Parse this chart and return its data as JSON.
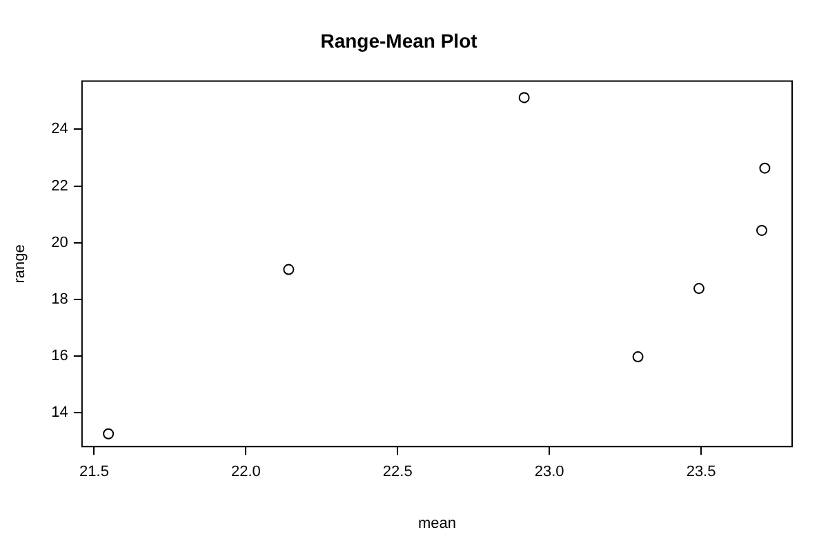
{
  "chart_data": {
    "type": "scatter",
    "title": "Range-Mean Plot",
    "xlabel": "mean",
    "ylabel": "range",
    "x": [
      21.547,
      22.141,
      22.917,
      23.292,
      23.493,
      23.7,
      23.71
    ],
    "series": [
      {
        "color": "#000000",
        "values": [
          13.25,
          19.05,
          25.12,
          15.97,
          18.38,
          20.43,
          22.63
        ]
      }
    ],
    "xlim": [
      21.46,
      23.8
    ],
    "xticks": [
      {
        "value": 21.5,
        "label": "21.5"
      },
      {
        "value": 22,
        "label": "22.0"
      },
      {
        "value": 22.5,
        "label": "22.5"
      },
      {
        "value": 23,
        "label": "23.0"
      },
      {
        "value": 23.5,
        "label": "23.5"
      }
    ],
    "ylim": [
      12.8,
      25.7
    ],
    "yticks": [
      14,
      16,
      18,
      20,
      22,
      24
    ],
    "grid": false,
    "legend": false,
    "marker": "circle"
  }
}
